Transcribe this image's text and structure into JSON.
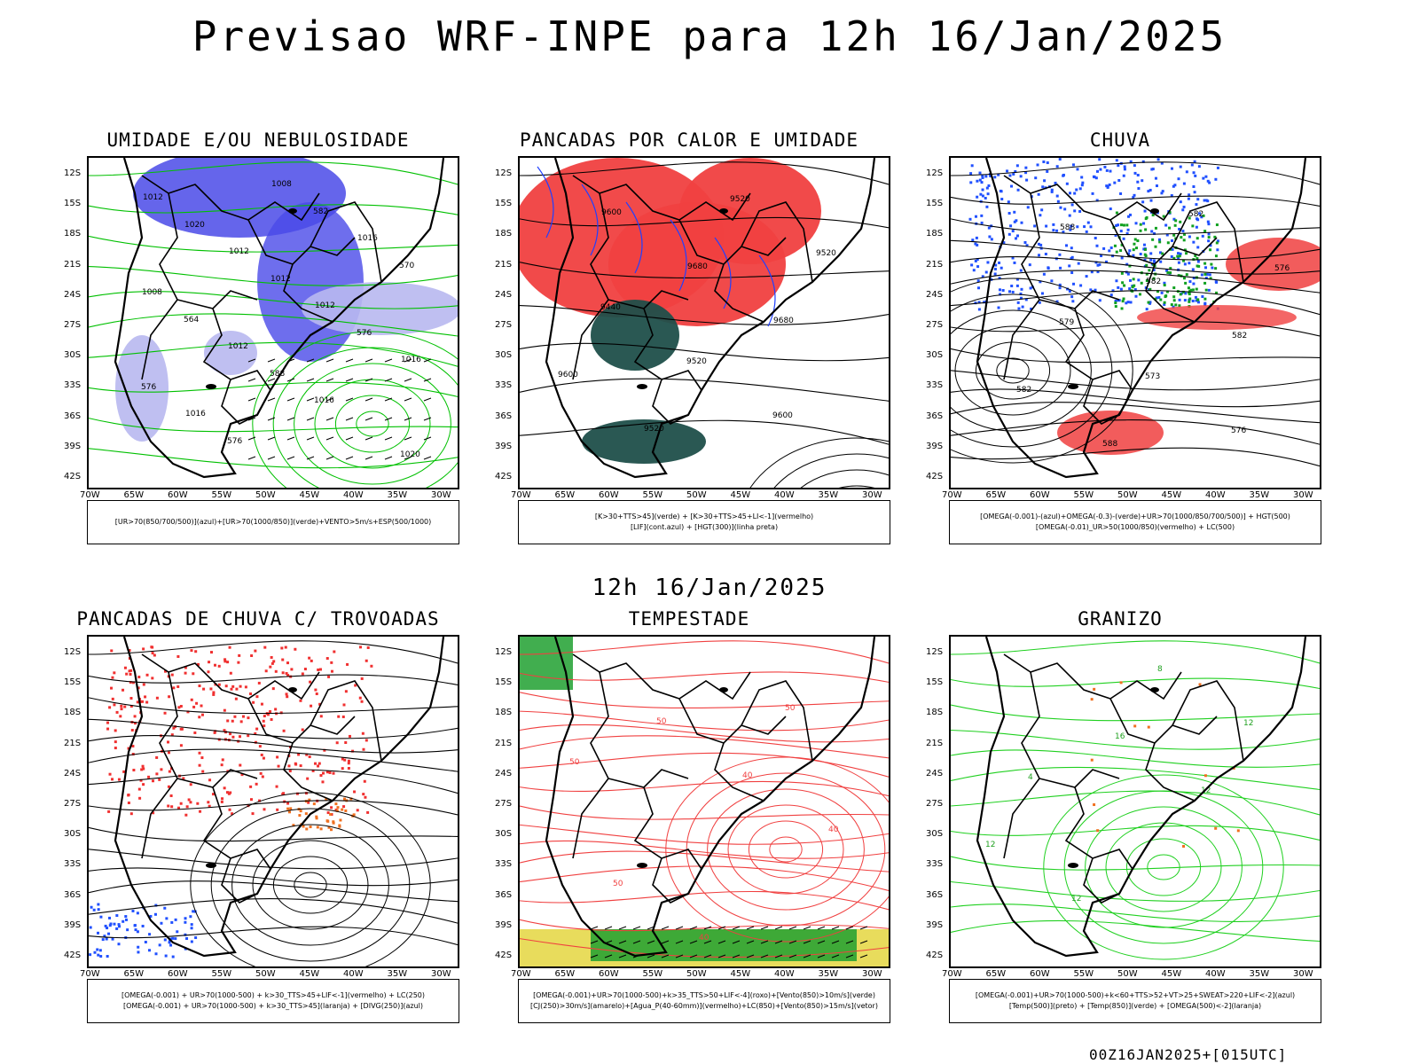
{
  "header": {
    "title": "Previsao WRF-INPE  para 12h 16/Jan/2025"
  },
  "mid": {
    "title": "12h 16/Jan/2025"
  },
  "footer": {
    "run": "00Z16JAN2025+[015UTC]"
  },
  "axes": {
    "lat": [
      "12S",
      "15S",
      "18S",
      "21S",
      "24S",
      "27S",
      "30S",
      "33S",
      "36S",
      "39S",
      "42S"
    ],
    "lon": [
      "70W",
      "65W",
      "60W",
      "55W",
      "50W",
      "45W",
      "40W",
      "35W",
      "30W"
    ]
  },
  "panels": [
    {
      "title": "UMIDADE E/OU NEBULOSIDADE",
      "legend": [
        "[UR>70(850/700/500)](azul)+[UR>70(1000/850)](verde)+VENTO>5m/s+ESP(500/1000)"
      ],
      "labels": [
        "1012",
        "1012",
        "1012",
        "1016",
        "1016",
        "1008",
        "1016",
        "1008",
        "1012",
        "1016",
        "1020",
        "1020",
        "1012",
        "576",
        "576",
        "576",
        "582",
        "570",
        "564",
        "588"
      ]
    },
    {
      "title": "PANCADAS POR CALOR E UMIDADE",
      "legend": [
        "[K>30+TTS>45](verde) + [K>30+TTS>45+LI<-1](vermelho)",
        "[LIF](cont.azul) + [HGT(300)](linha preta)"
      ],
      "labels": [
        "9600",
        "9680",
        "9680",
        "9600",
        "9520",
        "9520",
        "9520",
        "9440",
        "9520",
        "9600"
      ]
    },
    {
      "title": "CHUVA",
      "legend": [
        "[OMEGA(-0.001)-(azul)+OMEGA(-0.3)-(verde)+UR>70(1000/850/700/500)] + HGT(500)",
        "[OMEGA(-0.01)_UR>50(1000/850)(vermelho) + LC(500)"
      ],
      "labels": [
        "588",
        "582",
        "582",
        "582",
        "588",
        "582",
        "576",
        "579",
        "573",
        "576"
      ]
    },
    {
      "title": "PANCADAS DE CHUVA C/ TROVOADAS",
      "legend": [
        "[OMEGA(-0.001) + UR>70(1000-500) + k>30_TTS>45+LIF<-1](vermelho) + LC(250)",
        "[OMEGA(-0.001) + UR>70(1000-500) + k>30_TTS>45](laranja) + [DIVG(250)](azul)"
      ],
      "labels": []
    },
    {
      "title": "TEMPESTADE",
      "legend": [
        "[OMEGA(-0.001)+UR>70(1000-500)+k>35_TTS>50+LIF<-4](roxo)+[Vento(850)>10m/s](verde)",
        "[CJ(250)>30m/s](amarelo)+[Agua_P(40-60mm)](vermelho)+LC(850)+[Vento(850)>15m/s](vetor)"
      ],
      "labels": [
        "50",
        "40",
        "40",
        "50",
        "40",
        "50",
        "50"
      ]
    },
    {
      "title": "GRANIZO",
      "legend": [
        "[OMEGA(-0.001)+UR>70(1000-500)+k<60+TTS>52+VT>25+SWEAT>220+LIF<-2](azul)",
        "[Temp(500)](preto) + [Temp(850)](verde) + [OMEGA(500)<-2](laranja)"
      ],
      "labels": [
        "16",
        "12",
        "12",
        "12",
        "8",
        "12",
        "4"
      ]
    }
  ]
}
